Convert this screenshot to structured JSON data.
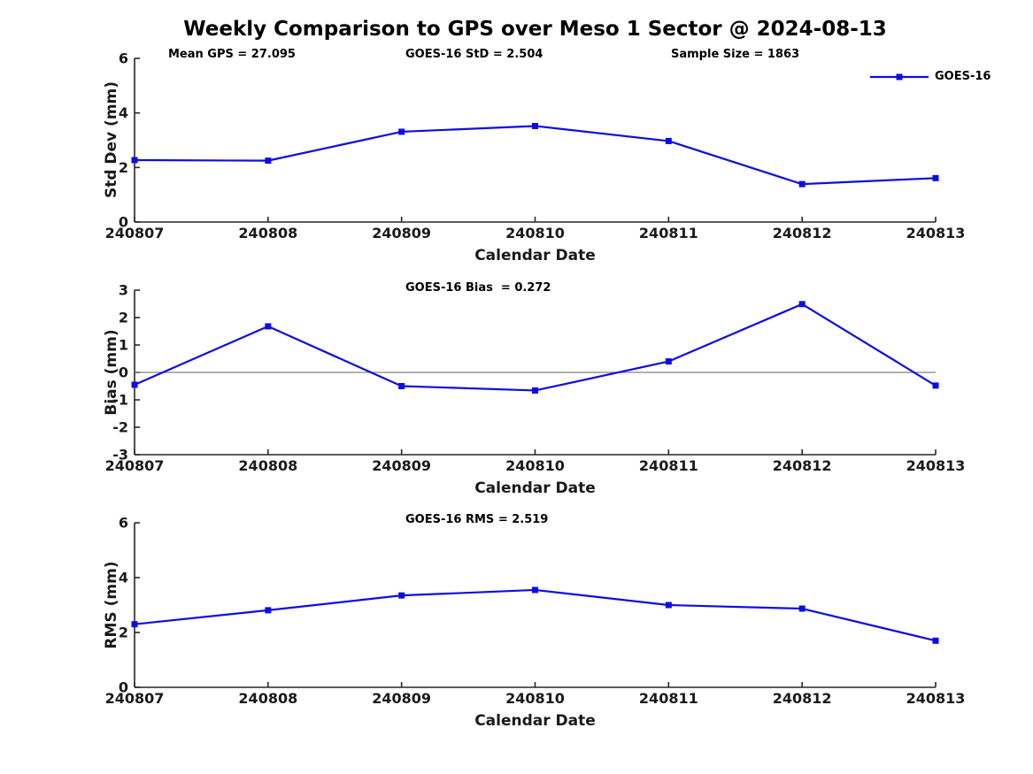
{
  "title": "Weekly Comparison to GPS over Meso 1 Sector @ 2024-08-13",
  "legend": {
    "label": "GOES-16"
  },
  "colors": {
    "series": "#0d0de3",
    "axis": "#262626",
    "tick_text": "#1a1a1a",
    "zero_line": "#808080"
  },
  "chart_data": [
    {
      "type": "line",
      "id": "std-dev",
      "xlabel": "Calendar Date",
      "ylabel": "Std Dev (mm)",
      "categories": [
        "240807",
        "240808",
        "240809",
        "240810",
        "240811",
        "240812",
        "240813"
      ],
      "series": [
        {
          "name": "GOES-16",
          "values": [
            2.27,
            2.25,
            3.31,
            3.52,
            2.97,
            1.39,
            1.61
          ],
          "marker": "square"
        }
      ],
      "ylim": [
        0,
        6
      ],
      "yticks": [
        0,
        2,
        4,
        6
      ],
      "grid": false,
      "legend_position": "top-right",
      "annotations": [
        "Mean GPS = 27.095",
        "GOES-16 StD = 2.504",
        "Sample Size = 1863"
      ]
    },
    {
      "type": "line",
      "id": "bias",
      "xlabel": "Calendar Date",
      "ylabel": "Bias (mm)",
      "categories": [
        "240807",
        "240808",
        "240809",
        "240810",
        "240811",
        "240812",
        "240813"
      ],
      "series": [
        {
          "name": "GOES-16",
          "values": [
            -0.45,
            1.68,
            -0.5,
            -0.66,
            0.4,
            2.49,
            -0.48
          ],
          "marker": "square"
        }
      ],
      "ylim": [
        -3,
        3
      ],
      "yticks": [
        -3,
        -2,
        -1,
        0,
        1,
        2,
        3
      ],
      "zero_line": true,
      "grid": false,
      "annotations": [
        "GOES-16 Bias  = 0.272"
      ]
    },
    {
      "type": "line",
      "id": "rms",
      "xlabel": "Calendar Date",
      "ylabel": "RMS (mm)",
      "categories": [
        "240807",
        "240808",
        "240809",
        "240810",
        "240811",
        "240812",
        "240813"
      ],
      "series": [
        {
          "name": "GOES-16",
          "values": [
            2.3,
            2.81,
            3.35,
            3.55,
            3.0,
            2.87,
            1.7
          ],
          "marker": "square"
        }
      ],
      "ylim": [
        0,
        6
      ],
      "yticks": [
        0,
        2,
        4,
        6
      ],
      "grid": false,
      "annotations": [
        "GOES-16 RMS = 2.519"
      ]
    }
  ]
}
